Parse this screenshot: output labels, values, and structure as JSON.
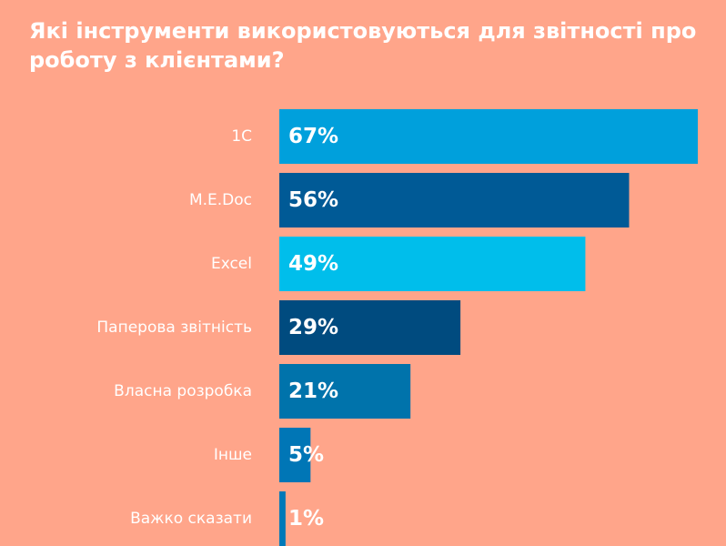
{
  "title": "Які інструменти використовуються для звітності про роботу з клієнтами?",
  "chart_data": {
    "type": "bar",
    "orientation": "horizontal",
    "categories": [
      "1С",
      "M.E.Doc",
      "Excel",
      "Паперова звітність",
      "Власна розробка",
      "Інше",
      "Важко сказати"
    ],
    "values": [
      67,
      56,
      49,
      29,
      21,
      5,
      1
    ],
    "value_labels": [
      "67%",
      "56%",
      "49%",
      "29%",
      "21%",
      "5%",
      "1%"
    ],
    "colors": [
      "#00A0DC",
      "#005A96",
      "#00BEEB",
      "#004B7F",
      "#0073AB",
      "#0076B6",
      "#0079B8"
    ],
    "xlim": [
      0,
      67
    ],
    "grid": false,
    "legend": "none"
  }
}
